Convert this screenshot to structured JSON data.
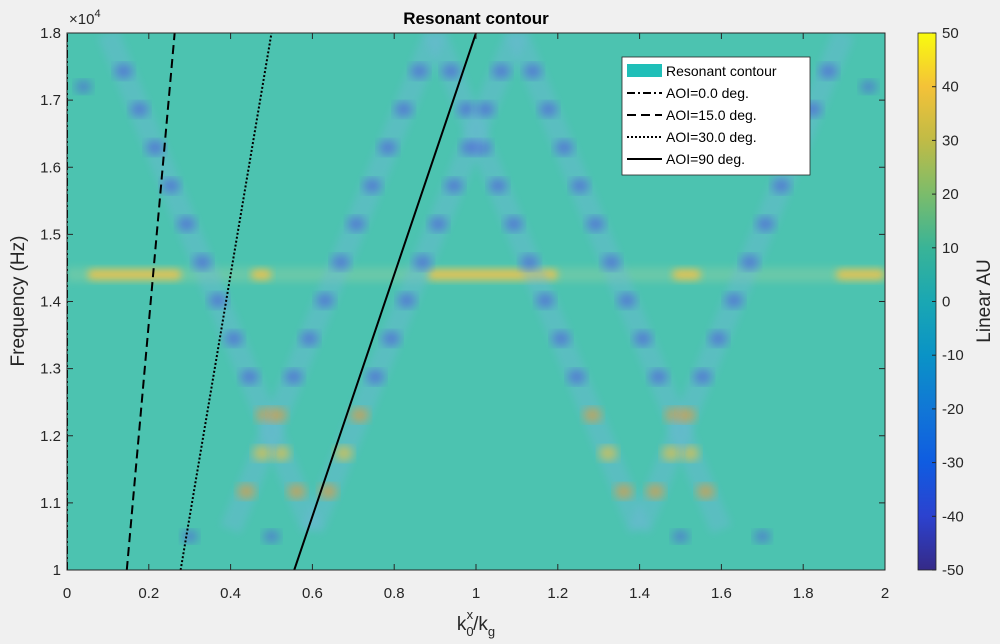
{
  "chart_data": {
    "type": "heatmap",
    "title": "Resonant contour",
    "xlabel_parts": {
      "base": "k",
      "sub": "0",
      "sup": "x",
      "sep": "/",
      "base2": "k",
      "sub2": "g"
    },
    "ylabel": "Frequency (Hz)",
    "y_exponent_label": {
      "base": "×10",
      "exp": "4"
    },
    "xlim": [
      0,
      2
    ],
    "ylim": [
      10000,
      18000
    ],
    "x_ticks": [
      0,
      0.2,
      0.4,
      0.6,
      0.8,
      1,
      1.2,
      1.4,
      1.6,
      1.8,
      2
    ],
    "x_tick_labels": [
      "0",
      "0.2",
      "0.4",
      "0.6",
      "0.8",
      "1",
      "1.2",
      "1.4",
      "1.6",
      "1.8",
      "2"
    ],
    "y_ticks": [
      10000,
      11000,
      12000,
      13000,
      14000,
      15000,
      16000,
      17000,
      18000
    ],
    "y_tick_labels": [
      "1",
      "1.1",
      "1.2",
      "1.3",
      "1.4",
      "1.5",
      "1.6",
      "1.7",
      "1.8"
    ],
    "colorbar": {
      "label": "Linear AU",
      "range": [
        -50,
        50
      ],
      "ticks": [
        50,
        40,
        30,
        20,
        10,
        0,
        -10,
        -20,
        -30,
        -40,
        -50
      ],
      "tick_labels": [
        "50",
        "40",
        "30",
        "20",
        "10",
        "0",
        "-10",
        "-20",
        "-30",
        "-40",
        "-50"
      ],
      "colormap": "parula"
    },
    "background_color": "#4cc3b0",
    "heatmap_features": {
      "horizontal_band_frequency": 14400,
      "resonant_lines": [
        {
          "from": [
            0.1,
            18000
          ],
          "to": [
            0.6,
            10600
          ]
        },
        {
          "from": [
            0.9,
            18000
          ],
          "to": [
            0.4,
            10600
          ]
        },
        {
          "from": [
            0.9,
            18000
          ],
          "to": [
            1.4,
            10600
          ]
        },
        {
          "from": [
            1.1,
            18000
          ],
          "to": [
            0.6,
            10600
          ]
        },
        {
          "from": [
            1.1,
            18000
          ],
          "to": [
            1.6,
            10600
          ]
        },
        {
          "from": [
            1.9,
            18000
          ],
          "to": [
            1.4,
            10600
          ]
        }
      ]
    },
    "series": [
      {
        "name": "AOI=0.0 deg.",
        "style": "dashdot",
        "color": "#000000",
        "x": [
          0,
          0
        ],
        "y": [
          10000,
          18000
        ]
      },
      {
        "name": "AOI=15.0 deg.",
        "style": "dashed",
        "color": "#000000",
        "x": [
          0.1462,
          0.2632
        ],
        "y": [
          10000,
          18000
        ]
      },
      {
        "name": "AOI=30.0 deg.",
        "style": "dotted",
        "color": "#000000",
        "x": [
          0.2778,
          0.5
        ],
        "y": [
          10000,
          18000
        ]
      },
      {
        "name": "AOI=90 deg.",
        "style": "solid",
        "color": "#000000",
        "x": [
          0.5556,
          1.0
        ],
        "y": [
          10000,
          18000
        ]
      }
    ],
    "legend": {
      "position": "top-right",
      "items": [
        "Resonant contour",
        "AOI=0.0 deg.",
        "AOI=15.0 deg.",
        "AOI=30.0 deg.",
        "AOI=90 deg."
      ],
      "patch_color": "#1fbfb8"
    }
  }
}
